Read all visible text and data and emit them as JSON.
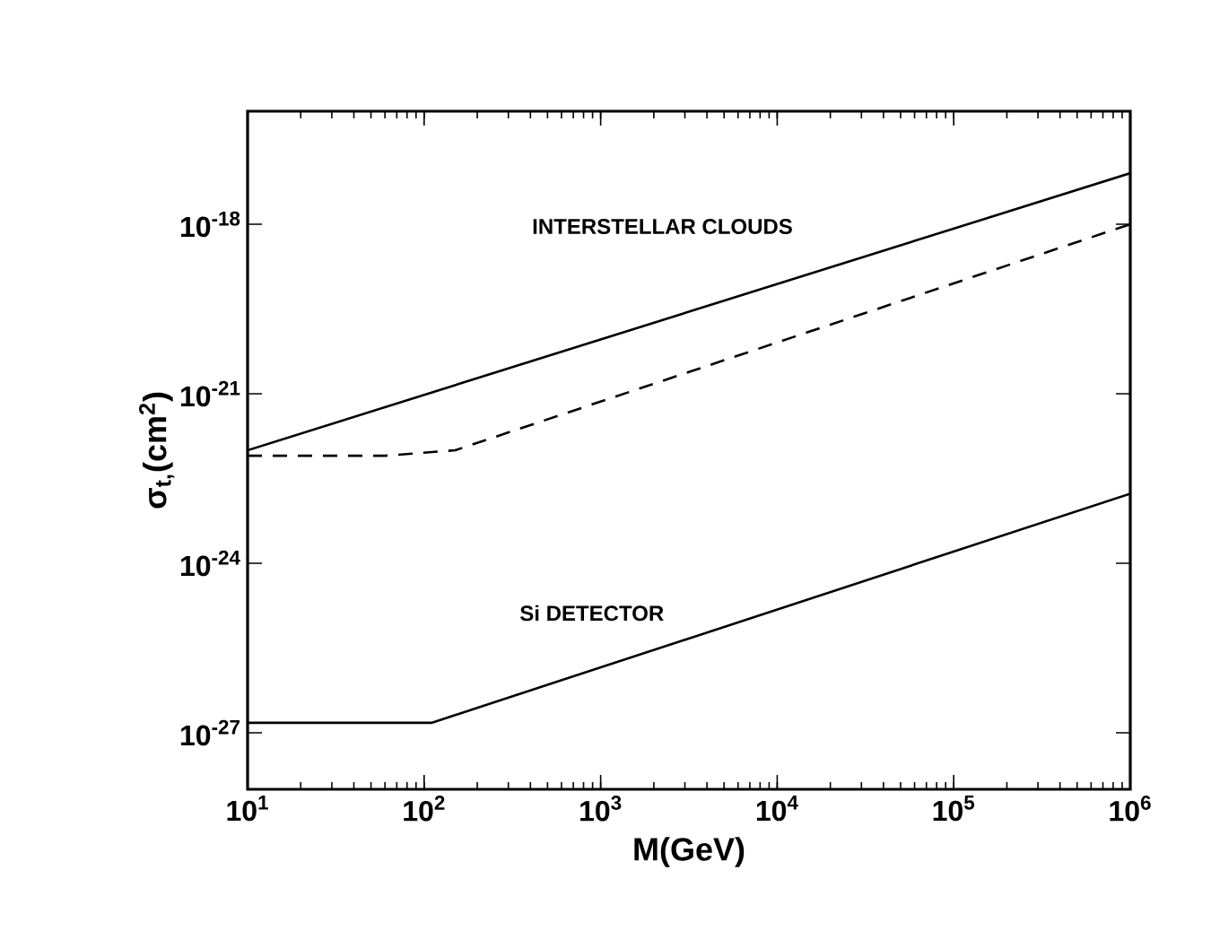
{
  "chart_data": {
    "type": "line",
    "xlabel": "M(GeV)",
    "ylabel": "σ$_{t,}$(cm$^{2}$)",
    "log": "xy",
    "xlim": [
      10,
      1000000
    ],
    "ylim": [
      1e-28,
      1e-16
    ],
    "xticks": [
      {
        "value": 10,
        "label": "10$^{1}$"
      },
      {
        "value": 100,
        "label": "10$^{2}$"
      },
      {
        "value": 1000,
        "label": "10$^{3}$"
      },
      {
        "value": 10000,
        "label": "10$^{4}$"
      },
      {
        "value": 100000,
        "label": "10$^{5}$"
      },
      {
        "value": 1000000,
        "label": "10$^{6}$"
      }
    ],
    "yticks": [
      {
        "value": 1e-27,
        "label": "10$^{-27}$"
      },
      {
        "value": 1e-24,
        "label": "10$^{-24}$"
      },
      {
        "value": 1e-21,
        "label": "10$^{-21}$"
      },
      {
        "value": 1e-18,
        "label": "10$^{-18}$"
      }
    ],
    "series": [
      {
        "color": "#000000",
        "line_style": "solid",
        "x": [
          10,
          1000000
        ],
        "values": [
          1e-22,
          8e-18
        ]
      },
      {
        "color": "#000000",
        "line_style": "dashed",
        "x": [
          10,
          60,
          150,
          1000000
        ],
        "values": [
          8e-23,
          8e-23,
          1e-22,
          1e-18
        ]
      },
      {
        "color": "#000000",
        "line_style": "solid",
        "x": [
          10,
          110,
          1000000
        ],
        "values": [
          1.5e-27,
          1.5e-27,
          1.7e-23
        ]
      }
    ],
    "annotations": [
      "INTERSTELLAR CLOUDS",
      "Si DETECTOR"
    ],
    "marker": "none"
  }
}
